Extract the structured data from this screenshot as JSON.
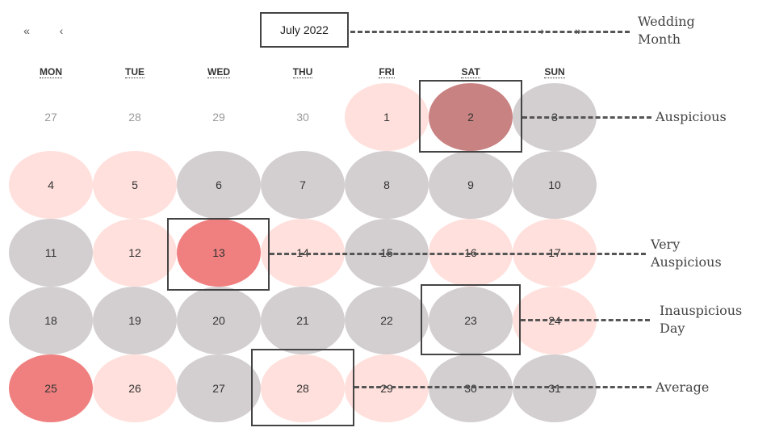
{
  "colors": {
    "auspicious": "#c98282",
    "very_auspicious": "#f08080",
    "average": "#ffe0dc",
    "inauspicious": "#d3cfd0",
    "frame": "#444444"
  },
  "nav": {
    "prev_year": "«",
    "prev_month": "‹",
    "next_month": "›",
    "next_year": "»"
  },
  "month_label": "July 2022",
  "weekdays": [
    "MON",
    "TUE",
    "WED",
    "THU",
    "FRI",
    "SAT",
    "SUN"
  ],
  "weeks": [
    [
      {
        "label": "27",
        "status": "none",
        "muted": true
      },
      {
        "label": "28",
        "status": "none",
        "muted": true
      },
      {
        "label": "29",
        "status": "none",
        "muted": true
      },
      {
        "label": "30",
        "status": "none",
        "muted": true
      },
      {
        "label": "1",
        "status": "average"
      },
      {
        "label": "2",
        "status": "auspicious"
      },
      {
        "label": "3",
        "status": "inauspicious"
      }
    ],
    [
      {
        "label": "4",
        "status": "average"
      },
      {
        "label": "5",
        "status": "average"
      },
      {
        "label": "6",
        "status": "inauspicious"
      },
      {
        "label": "7",
        "status": "inauspicious"
      },
      {
        "label": "8",
        "status": "inauspicious"
      },
      {
        "label": "9",
        "status": "inauspicious"
      },
      {
        "label": "10",
        "status": "inauspicious"
      }
    ],
    [
      {
        "label": "11",
        "status": "inauspicious"
      },
      {
        "label": "12",
        "status": "average"
      },
      {
        "label": "13",
        "status": "very_auspicious"
      },
      {
        "label": "14",
        "status": "average"
      },
      {
        "label": "15",
        "status": "inauspicious"
      },
      {
        "label": "16",
        "status": "average"
      },
      {
        "label": "17",
        "status": "average"
      }
    ],
    [
      {
        "label": "18",
        "status": "inauspicious"
      },
      {
        "label": "19",
        "status": "inauspicious"
      },
      {
        "label": "20",
        "status": "inauspicious"
      },
      {
        "label": "21",
        "status": "inauspicious"
      },
      {
        "label": "22",
        "status": "inauspicious"
      },
      {
        "label": "23",
        "status": "inauspicious"
      },
      {
        "label": "24",
        "status": "average"
      }
    ],
    [
      {
        "label": "25",
        "status": "very_auspicious"
      },
      {
        "label": "26",
        "status": "average"
      },
      {
        "label": "27",
        "status": "inauspicious"
      },
      {
        "label": "28",
        "status": "average"
      },
      {
        "label": "29",
        "status": "average"
      },
      {
        "label": "30",
        "status": "inauspicious"
      },
      {
        "label": "31",
        "status": "inauspicious"
      }
    ]
  ],
  "annotations": {
    "wedding_month": "Wedding\nMonth",
    "auspicious": "Auspicious",
    "very_auspicious": "Very\nAuspicious",
    "inauspicious_day": "Inauspicious\nDay",
    "average": "Average"
  }
}
